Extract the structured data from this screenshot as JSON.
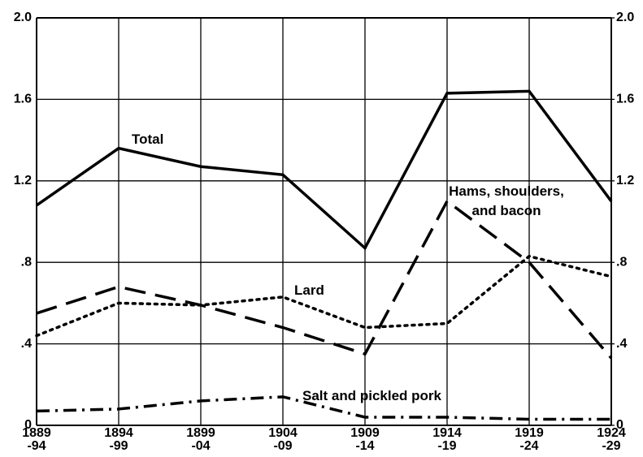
{
  "chart_data": {
    "type": "line",
    "categories": [
      [
        "1889",
        "-94"
      ],
      [
        "1894",
        "-99"
      ],
      [
        "1899",
        "-04"
      ],
      [
        "1904",
        "-09"
      ],
      [
        "1909",
        "-14"
      ],
      [
        "1914",
        "-19"
      ],
      [
        "1919",
        "-24"
      ],
      [
        "1924",
        "-29"
      ]
    ],
    "series": [
      {
        "name": "Total",
        "color": "#000000",
        "style": "solid",
        "values": [
          1.08,
          1.36,
          1.27,
          1.23,
          0.87,
          1.63,
          1.64,
          1.1
        ]
      },
      {
        "name": "Hams, shoulders, and bacon",
        "color": "#000000",
        "style": "dashed",
        "values": [
          0.55,
          0.68,
          0.59,
          0.48,
          0.35,
          1.1,
          0.8,
          0.33
        ]
      },
      {
        "name": "Lard",
        "color": "#000000",
        "style": "dotted",
        "values": [
          0.44,
          0.6,
          0.59,
          0.63,
          0.48,
          0.5,
          0.83,
          0.73
        ]
      },
      {
        "name": "Salt and pickled pork",
        "color": "#000000",
        "style": "dashdot",
        "values": [
          0.07,
          0.08,
          0.12,
          0.14,
          0.04,
          0.04,
          0.03,
          0.03
        ]
      }
    ],
    "ylim": [
      0,
      2.0
    ],
    "yticks": [
      0,
      {
        "value": 0.4,
        "label": ".4"
      },
      {
        "value": 0.8,
        "label": ".8"
      },
      1.2,
      1.6,
      {
        "value": 2.0,
        "label": "2.0"
      }
    ],
    "y2lim": [
      0,
      2.0
    ],
    "y2ticks": [
      0,
      {
        "value": 0.4,
        "label": ".4"
      },
      {
        "value": 0.8,
        "label": ".8"
      },
      1.2,
      1.6,
      {
        "value": 2.0,
        "label": "2.0"
      }
    ],
    "grid": true
  }
}
